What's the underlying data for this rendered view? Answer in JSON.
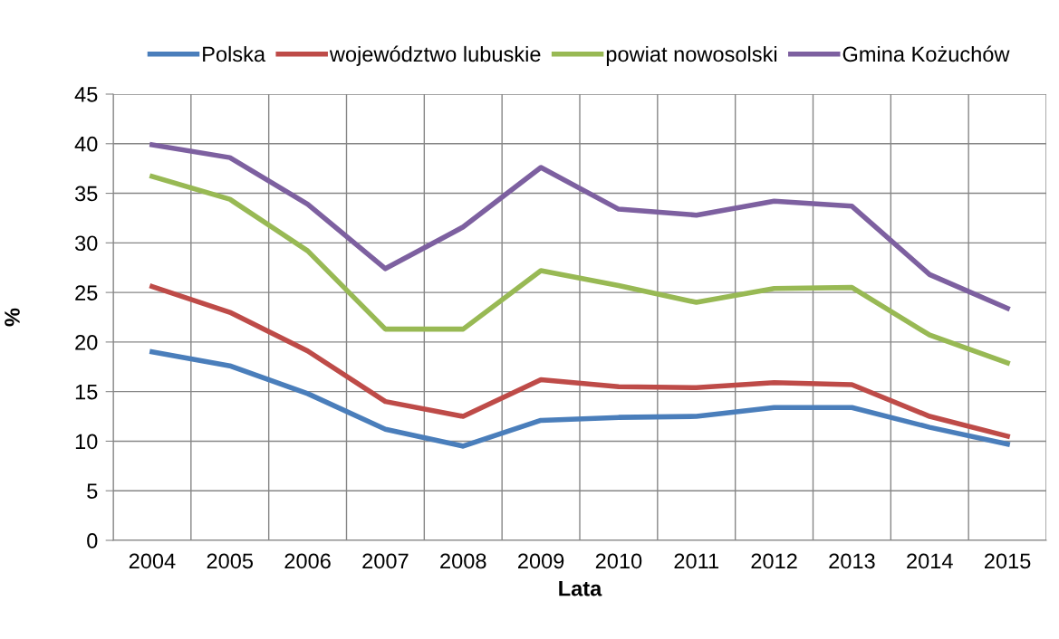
{
  "chart_data": {
    "type": "line",
    "xlabel": "Lata",
    "ylabel": "%",
    "categories": [
      "2004",
      "2005",
      "2006",
      "2007",
      "2008",
      "2009",
      "2010",
      "2011",
      "2012",
      "2013",
      "2014",
      "2015"
    ],
    "series": [
      {
        "name": "Polska",
        "color": "#4a7ebb",
        "values": [
          19.0,
          17.6,
          14.8,
          11.2,
          9.5,
          12.1,
          12.4,
          12.5,
          13.4,
          13.4,
          11.4,
          9.7
        ]
      },
      {
        "name": "województwo lubuskie",
        "color": "#be4b48",
        "values": [
          25.6,
          23.0,
          19.1,
          14.0,
          12.5,
          16.2,
          15.5,
          15.4,
          15.9,
          15.7,
          12.5,
          10.5
        ]
      },
      {
        "name": "powiat nowosolski",
        "color": "#98b954",
        "values": [
          36.7,
          34.4,
          29.2,
          21.3,
          21.3,
          27.2,
          25.7,
          24.0,
          25.4,
          25.5,
          20.7,
          17.9
        ]
      },
      {
        "name": "Gmina Kożuchów",
        "color": "#7d60a0",
        "values": [
          39.9,
          38.6,
          33.9,
          27.4,
          31.6,
          37.6,
          33.4,
          32.8,
          34.2,
          33.7,
          26.8,
          23.4
        ]
      }
    ],
    "ylim": [
      0,
      45
    ],
    "yticks": [
      0,
      5,
      10,
      15,
      20,
      25,
      30,
      35,
      40,
      45
    ],
    "grid": true,
    "legend": "top",
    "marker": "none",
    "line_style": "solid"
  }
}
